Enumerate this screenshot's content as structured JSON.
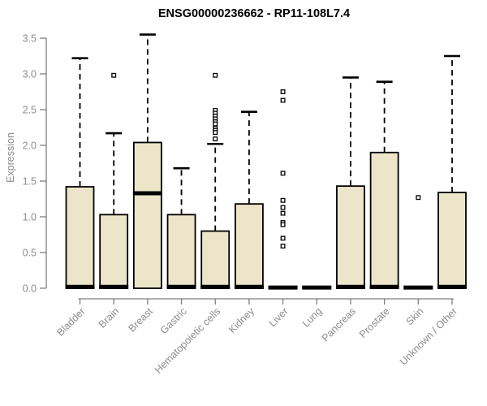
{
  "colors": {
    "background": "#ffffff",
    "box_fill": "#ece5c9",
    "box_stroke": "#000000",
    "median": "#000000",
    "whisker": "#000000",
    "outlier_stroke": "#000000",
    "outlier_fill": "#ffffff",
    "axis_line": "#7f7f7f",
    "axis_text": "#8c8c8c",
    "title": "#000000"
  },
  "chart_data": {
    "type": "boxplot",
    "title": "ENSG00000236662 - RP11-108L7.4",
    "xlabel": "",
    "ylabel": "Expression",
    "ylim": [
      0,
      3.5
    ],
    "yticks": [
      0.0,
      0.5,
      1.0,
      1.5,
      2.0,
      2.5,
      3.0,
      3.5
    ],
    "grid": false,
    "legend": false,
    "categories": [
      "Bladder",
      "Brain",
      "Breast",
      "Gastric",
      "Hematopoietic cells",
      "Kidney",
      "Liver",
      "Lung",
      "Pancreas",
      "Prostate",
      "Skin",
      "Unknown / Other"
    ],
    "series": [
      {
        "name": "Bladder",
        "whisker_low": 0,
        "q1": 0,
        "median": 0.02,
        "q3": 1.42,
        "whisker_high": 3.22,
        "outliers": []
      },
      {
        "name": "Brain",
        "whisker_low": 0,
        "q1": 0,
        "median": 0.02,
        "q3": 1.03,
        "whisker_high": 2.17,
        "outliers": [
          2.98
        ]
      },
      {
        "name": "Breast",
        "whisker_low": 0,
        "q1": 0,
        "median": 1.33,
        "q3": 2.04,
        "whisker_high": 3.55,
        "outliers": []
      },
      {
        "name": "Gastric",
        "whisker_low": 0,
        "q1": 0,
        "median": 0.02,
        "q3": 1.03,
        "whisker_high": 1.68,
        "outliers": []
      },
      {
        "name": "Hematopoietic cells",
        "whisker_low": 0,
        "q1": 0,
        "median": 0.02,
        "q3": 0.8,
        "whisker_high": 2.02,
        "outliers": [
          2.98,
          2.49,
          2.45,
          2.41,
          2.37,
          2.33,
          2.3,
          2.24,
          2.21,
          2.18,
          2.09
        ]
      },
      {
        "name": "Kidney",
        "whisker_low": 0,
        "q1": 0,
        "median": 0.02,
        "q3": 1.18,
        "whisker_high": 2.47,
        "outliers": []
      },
      {
        "name": "Liver",
        "whisker_low": 0,
        "q1": 0,
        "median": 0.01,
        "q3": 0.02,
        "whisker_high": 0.02,
        "outliers": [
          2.75,
          2.63,
          1.61,
          1.23,
          1.13,
          1.05,
          0.92,
          0.89,
          0.7,
          0.59
        ]
      },
      {
        "name": "Lung",
        "whisker_low": 0,
        "q1": 0,
        "median": 0.01,
        "q3": 0.02,
        "whisker_high": 0.02,
        "outliers": []
      },
      {
        "name": "Pancreas",
        "whisker_low": 0,
        "q1": 0,
        "median": 0.02,
        "q3": 1.43,
        "whisker_high": 2.95,
        "outliers": []
      },
      {
        "name": "Prostate",
        "whisker_low": 0,
        "q1": 0,
        "median": 0.02,
        "q3": 1.9,
        "whisker_high": 2.89,
        "outliers": []
      },
      {
        "name": "Skin",
        "whisker_low": 0,
        "q1": 0,
        "median": 0.01,
        "q3": 0.02,
        "whisker_high": 0.02,
        "outliers": [
          1.27
        ]
      },
      {
        "name": "Unknown / Other",
        "whisker_low": 0,
        "q1": 0,
        "median": 0.02,
        "q3": 1.34,
        "whisker_high": 3.25,
        "outliers": []
      }
    ]
  }
}
